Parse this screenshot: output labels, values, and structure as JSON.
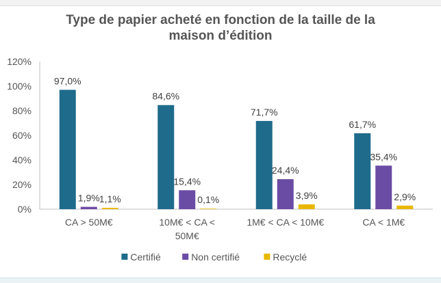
{
  "chart_data": {
    "type": "bar",
    "title_line1": "Type de papier acheté en fonction de la taille de la",
    "title_line2": "maison d’édition",
    "categories": [
      "CA > 50M€",
      "10M€ < CA < 50M€",
      "1M€ < CA < 10M€",
      "CA < 1M€"
    ],
    "category_lines": [
      [
        "CA > 50M€"
      ],
      [
        "10M€ < CA <",
        "50M€"
      ],
      [
        "1M€ < CA < 10M€"
      ],
      [
        "CA < 1M€"
      ]
    ],
    "series": [
      {
        "name": "Certifié",
        "color": "#1f6b8c",
        "values": [
          97.0,
          84.6,
          71.7,
          61.7
        ],
        "labels": [
          "97,0%",
          "84,6%",
          "71,7%",
          "61,7%"
        ]
      },
      {
        "name": "Non certifié",
        "color": "#6b4ca5",
        "values": [
          1.9,
          15.4,
          24.4,
          35.4
        ],
        "labels": [
          "1,9%",
          "15,4%",
          "24,4%",
          "35,4%"
        ]
      },
      {
        "name": "Recyclé",
        "color": "#e8b800",
        "values": [
          1.1,
          0.1,
          3.9,
          2.9
        ],
        "labels": [
          "1,1%",
          "0,1%",
          "3,9%",
          "2,9%"
        ]
      }
    ],
    "ylim": [
      0,
      120
    ],
    "yticks": [
      "0%",
      "20%",
      "40%",
      "60%",
      "80%",
      "100%",
      "120%"
    ],
    "grid": false,
    "legend_position": "bottom"
  }
}
